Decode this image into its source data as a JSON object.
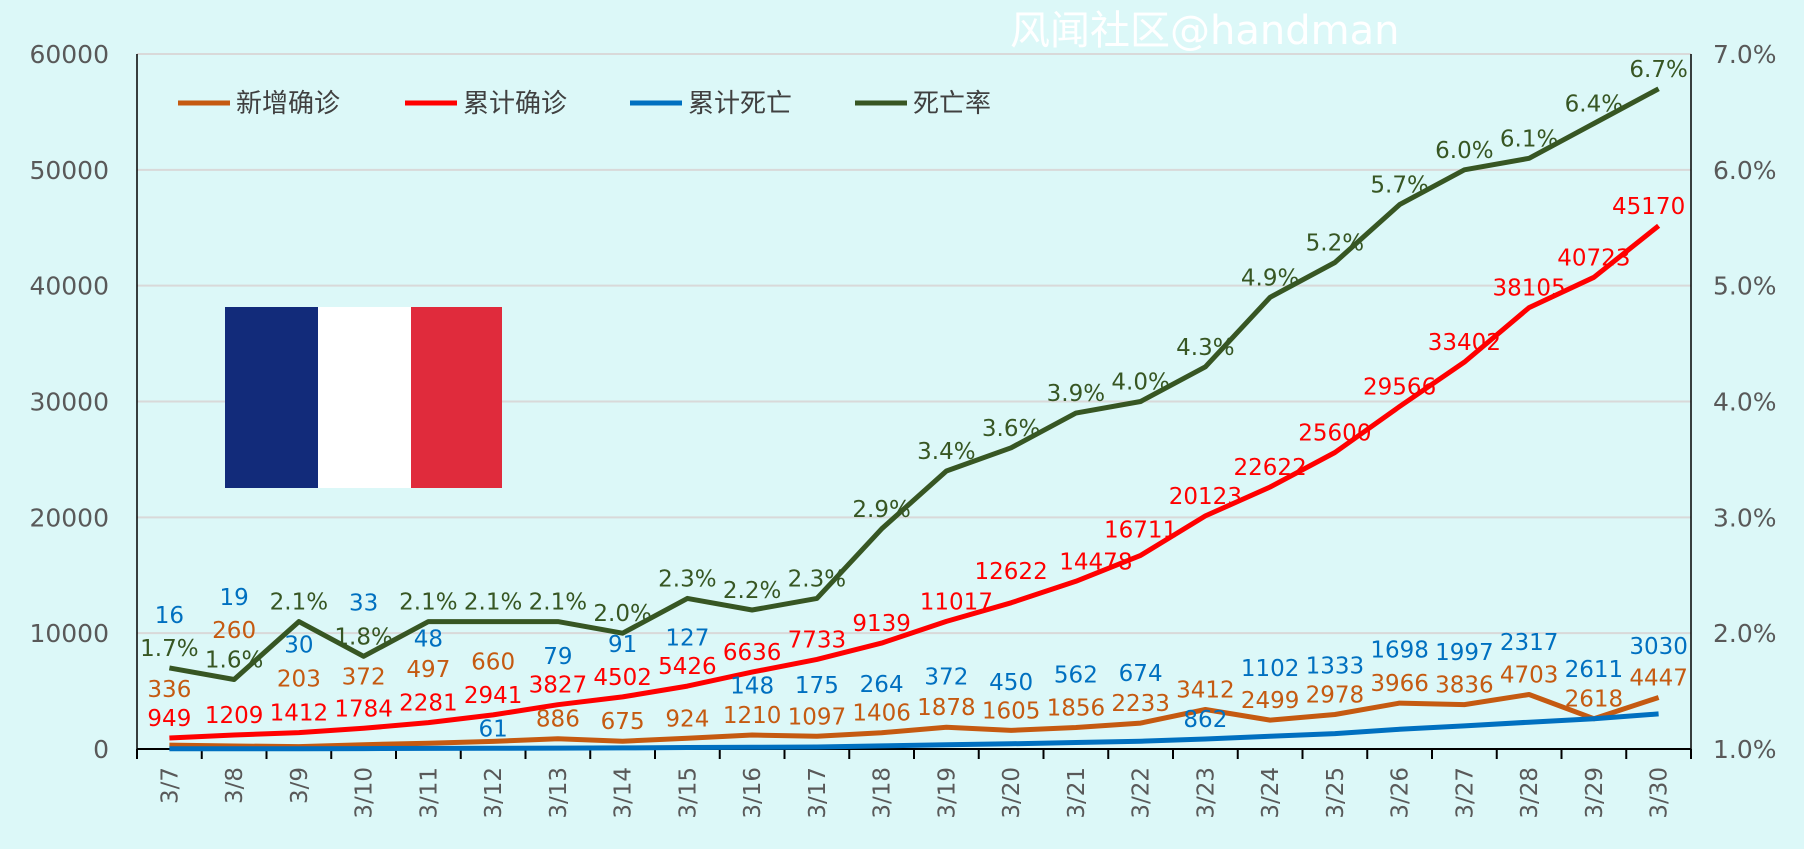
{
  "chart_data": {
    "type": "line",
    "title": "",
    "categories": [
      "3/7",
      "3/8",
      "3/9",
      "3/10",
      "3/11",
      "3/12",
      "3/13",
      "3/14",
      "3/15",
      "3/16",
      "3/17",
      "3/18",
      "3/19",
      "3/20",
      "3/21",
      "3/22",
      "3/23",
      "3/24",
      "3/25",
      "3/26",
      "3/27",
      "3/28",
      "3/29",
      "3/30"
    ],
    "ylim": [
      0,
      60000
    ],
    "yticks": [
      "0",
      "10000",
      "20000",
      "30000",
      "40000",
      "50000",
      "60000"
    ],
    "y2lim": [
      1.0,
      7.0
    ],
    "y2ticks": [
      "1.0%",
      "2.0%",
      "3.0%",
      "4.0%",
      "5.0%",
      "6.0%",
      "7.0%"
    ],
    "grid": true,
    "legend_position": "top-left",
    "series": [
      {
        "name": "新增确诊",
        "axis": "left",
        "color": "#c55a11",
        "values": [
          336,
          260,
          203,
          372,
          497,
          660,
          886,
          675,
          924,
          1210,
          1097,
          1406,
          1878,
          1605,
          1856,
          2233,
          3412,
          2499,
          2978,
          3966,
          3836,
          4703,
          2618,
          4447
        ]
      },
      {
        "name": "累计确诊",
        "axis": "left",
        "color": "#ff0000",
        "values": [
          949,
          1209,
          1412,
          1784,
          2281,
          2941,
          3827,
          4502,
          5426,
          6636,
          7733,
          9139,
          11017,
          12622,
          14478,
          16711,
          20123,
          22622,
          25600,
          29566,
          33402,
          38105,
          40723,
          45170
        ]
      },
      {
        "name": "累计死亡",
        "axis": "left",
        "color": "#0070c0",
        "values": [
          16,
          19,
          30,
          33,
          48,
          61,
          79,
          91,
          127,
          148,
          175,
          264,
          372,
          450,
          562,
          674,
          862,
          1102,
          1333,
          1698,
          1997,
          2317,
          2611,
          3030
        ]
      },
      {
        "name": "死亡率",
        "axis": "right",
        "color": "#375623",
        "values": [
          1.7,
          1.6,
          2.1,
          1.8,
          2.1,
          2.1,
          2.1,
          2.0,
          2.3,
          2.2,
          2.3,
          2.9,
          3.4,
          3.6,
          3.9,
          4.0,
          4.3,
          4.9,
          5.2,
          5.7,
          6.0,
          6.1,
          6.4,
          6.7
        ]
      }
    ]
  },
  "flag": {
    "colors": [
      "#122b7a",
      "#ffffff",
      "#e02b3c"
    ]
  },
  "watermark": "风闻社区@handman"
}
